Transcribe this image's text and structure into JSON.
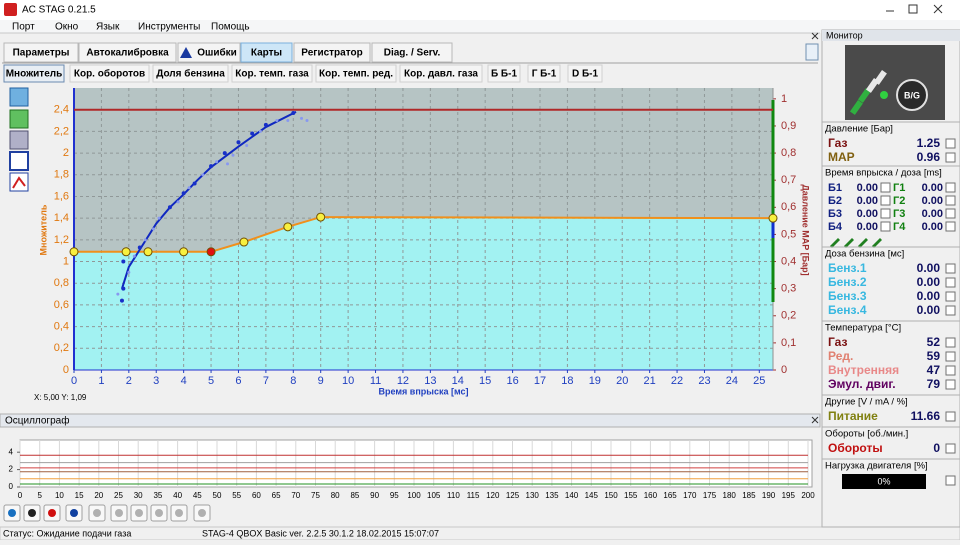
{
  "window": {
    "title": "AC STAG 0.21.5"
  },
  "menu": [
    "Порт",
    "Окно",
    "Язык",
    "Инструменты",
    "Помощь"
  ],
  "tabs": [
    "Параметры",
    "Автокалибровка",
    "Ошибки",
    "Карты",
    "Регистратор",
    "Diag. / Serv."
  ],
  "active_tab": 3,
  "subtabs": [
    "Множитель",
    "Кор. оборотов",
    "Доля бензина",
    "Кор. темп. газа",
    "Кор. темп. ред.",
    "Кор. давл. газа",
    "Б Б-1",
    "Г Б-1",
    "D Б-1"
  ],
  "active_subtab": 0,
  "coords": "X: 5,00  Y: 1,09",
  "oscilloscope_title": "Осциллограф",
  "status": {
    "left": "Статус: Ожидание подачи газа",
    "right": "STAG-4 QBOX Basic  ver. 2.2.5  30.1.2  18.02.2015 15:07:07"
  },
  "monitor": {
    "title": "Монитор",
    "logo": "B/G",
    "pressure": {
      "title": "Давление [Бар]",
      "rows": [
        {
          "label": "Газ",
          "value": "1.25",
          "color": "#7a1010"
        },
        {
          "label": "MAP",
          "value": "0.96",
          "color": "#806010"
        }
      ]
    },
    "injection": {
      "title": "Время впрыска / доза [ms]",
      "rows": [
        [
          {
            "label": "Б1",
            "value": "0.00"
          },
          {
            "label": "Г1",
            "value": "0.00"
          }
        ],
        [
          {
            "label": "Б2",
            "value": "0.00"
          },
          {
            "label": "Г2",
            "value": "0.00"
          }
        ],
        [
          {
            "label": "Б3",
            "value": "0.00"
          },
          {
            "label": "Г3",
            "value": "0.00"
          }
        ],
        [
          {
            "label": "Б4",
            "value": "0.00"
          },
          {
            "label": "Г4",
            "value": "0.00"
          }
        ]
      ]
    },
    "petrol": {
      "title": "Доза бензина [мс]",
      "rows": [
        {
          "label": "Бенз.1",
          "value": "0.00",
          "color": "#38b8e0"
        },
        {
          "label": "Бенз.2",
          "value": "0.00",
          "color": "#38b8e0"
        },
        {
          "label": "Бенз.3",
          "value": "0.00",
          "color": "#38b8e0"
        },
        {
          "label": "Бенз.4",
          "value": "0.00",
          "color": "#38b8e0"
        }
      ]
    },
    "temperature": {
      "title": "Температура [°C]",
      "rows": [
        {
          "label": "Газ",
          "value": "52",
          "color": "#7a1010"
        },
        {
          "label": "Ред.",
          "value": "59",
          "color": "#e08070"
        },
        {
          "label": "Внутренняя",
          "value": "47",
          "color": "#e88888"
        },
        {
          "label": "Эмул. двиг.",
          "value": "79",
          "color": "#600060"
        }
      ]
    },
    "other": {
      "title": "Другие [V / mA / %]",
      "rows": [
        {
          "label": "Питание",
          "value": "11.66",
          "color": "#808010"
        }
      ]
    },
    "rpm": {
      "title": "Обороты [об./мин.]",
      "rows": [
        {
          "label": "Обороты",
          "value": "0",
          "color": "#c01010"
        }
      ]
    },
    "load": {
      "title": "Нагрузка двигателя [%]",
      "bar_label": "0%"
    }
  },
  "chart_data": [
    {
      "type": "line",
      "x_label": "Время впрыска [мс]",
      "y_label": "Множитель",
      "y2_label": "Давление MAP [Бар]",
      "xlim": [
        0,
        25.5
      ],
      "ylim": [
        0,
        2.6
      ],
      "y2lim": [
        0,
        1.04
      ],
      "xticks": [
        0,
        1,
        2,
        3,
        4,
        5,
        6,
        7,
        8,
        9,
        10,
        11,
        12,
        13,
        14,
        15,
        16,
        17,
        18,
        19,
        20,
        21,
        22,
        23,
        24,
        25
      ],
      "yticks": [
        0,
        {
          "value": 0.2,
          "label": "0,2"
        },
        {
          "value": 0.4,
          "label": "0,4"
        },
        {
          "value": 0.6,
          "label": "0,6"
        },
        {
          "value": 0.8,
          "label": "0,8"
        },
        1,
        {
          "value": 1.2,
          "label": "1,2"
        },
        {
          "value": 1.4,
          "label": "1,4"
        },
        {
          "value": 1.6,
          "label": "1,6"
        },
        {
          "value": 1.8,
          "label": "1,8"
        },
        2,
        {
          "value": 2.2,
          "label": "2,2"
        },
        {
          "value": 2.4,
          "label": "2,4"
        }
      ],
      "y2ticks": [
        0,
        {
          "value": 0.1,
          "label": "0,1"
        },
        {
          "value": 0.2,
          "label": "0,2"
        },
        {
          "value": 0.3,
          "label": "0,3"
        },
        {
          "value": 0.4,
          "label": "0,4"
        },
        {
          "value": 0.5,
          "label": "0,5"
        },
        {
          "value": 0.6,
          "label": "0,6"
        },
        {
          "value": 0.7,
          "label": "0,7"
        },
        {
          "value": 0.8,
          "label": "0,8"
        },
        {
          "value": 0.9,
          "label": "0,9"
        },
        1
      ],
      "grid": true,
      "reference_lines": [
        {
          "value": 0.96,
          "axis": "y2",
          "color": "#b02828"
        }
      ],
      "series": [
        {
          "type": "line",
          "color": "#f0901c",
          "markers": true,
          "selected": 4,
          "x": [
            0,
            1.9,
            2.7,
            4,
            5,
            6.2,
            7.8,
            9,
            25.5
          ],
          "values": [
            1.09,
            1.09,
            1.09,
            1.09,
            1.09,
            1.18,
            1.32,
            1.41,
            1.4
          ]
        },
        {
          "type": "line",
          "color": "#1028c0",
          "x": [
            1.75,
            2,
            2.5,
            3,
            3.5,
            4,
            4.5,
            5,
            6,
            7,
            8.1
          ],
          "values": [
            0.75,
            0.95,
            1.15,
            1.35,
            1.5,
            1.62,
            1.75,
            1.87,
            2.06,
            2.24,
            2.38
          ]
        },
        {
          "type": "scatter",
          "color": "#1830c8",
          "x": [
            1.75,
            1.8,
            1.8,
            2.4,
            3.5,
            4,
            4.4,
            5,
            5.5,
            6,
            6.5,
            7,
            8
          ],
          "values": [
            0.64,
            0.75,
            1.0,
            1.13,
            1.5,
            1.63,
            1.72,
            1.88,
            2.0,
            2.1,
            2.18,
            2.26,
            2.37
          ]
        },
        {
          "type": "scatter",
          "color": "#8898f0",
          "x": [
            1.6,
            2,
            2.2,
            2.6,
            3.1,
            3.8,
            4.7,
            5.2,
            5.8,
            6.3,
            6.8,
            7.4,
            8.3,
            8.5,
            7.8,
            5.6,
            4.2,
            2.9
          ],
          "values": [
            0.7,
            0.9,
            1.05,
            1.2,
            1.4,
            1.55,
            1.8,
            1.92,
            1.98,
            2.07,
            2.2,
            2.3,
            2.32,
            2.3,
            2.3,
            1.9,
            1.68,
            1.3
          ]
        }
      ]
    },
    {
      "type": "line",
      "xlim": [
        0,
        200
      ],
      "ylim": [
        0,
        5.4
      ],
      "xticks": [
        0,
        5,
        10,
        15,
        20,
        25,
        30,
        35,
        40,
        45,
        50,
        55,
        60,
        65,
        70,
        75,
        80,
        85,
        90,
        95,
        100,
        105,
        110,
        115,
        120,
        125,
        130,
        135,
        140,
        145,
        150,
        155,
        160,
        165,
        170,
        175,
        180,
        185,
        190,
        195,
        200
      ],
      "yticks": [
        0,
        2,
        4
      ],
      "grid": true,
      "series": [
        {
          "color": "#c03030",
          "x": [
            0,
            200
          ],
          "values": [
            3.65,
            3.65
          ]
        },
        {
          "color": "#a0a0a0",
          "x": [
            0,
            200
          ],
          "values": [
            2.8,
            2.8
          ]
        },
        {
          "color": "#d04040",
          "x": [
            0,
            200
          ],
          "values": [
            2.2,
            2.2
          ]
        },
        {
          "color": "#a06040",
          "x": [
            0,
            200
          ],
          "values": [
            1.75,
            1.75
          ]
        },
        {
          "color": "#f0a040",
          "x": [
            0,
            200
          ],
          "values": [
            0.95,
            0.95
          ]
        },
        {
          "color": "#209020",
          "x": [
            0,
            200
          ],
          "values": [
            0.35,
            0.35
          ]
        }
      ]
    }
  ]
}
